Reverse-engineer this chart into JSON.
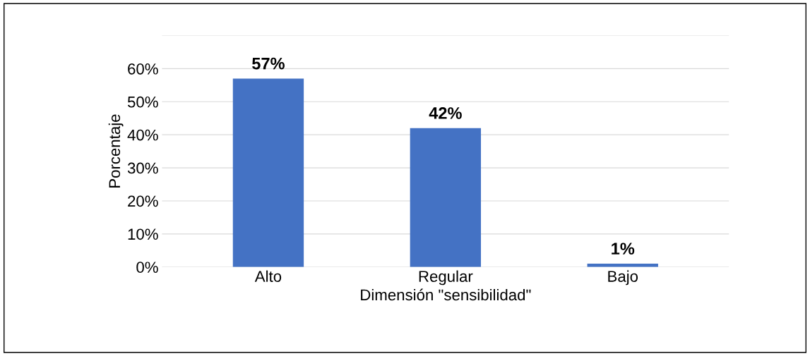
{
  "chart_data": {
    "type": "bar",
    "xlabel": "Dimensión \"sensibilidad\"",
    "ylabel": "Porcentaje",
    "categories": [
      "Alto",
      "Regular",
      "Bajo"
    ],
    "values": [
      57,
      42,
      1
    ],
    "value_labels": [
      "57%",
      "42%",
      "1%"
    ],
    "color": "#4472c4",
    "ylim": [
      0,
      70
    ],
    "yticks": [
      {
        "value": 0,
        "label": "0%"
      },
      {
        "value": 10,
        "label": "10%"
      },
      {
        "value": 20,
        "label": "20%"
      },
      {
        "value": 30,
        "label": "30%"
      },
      {
        "value": 40,
        "label": "40%"
      },
      {
        "value": 50,
        "label": "50%"
      },
      {
        "value": 60,
        "label": "60%"
      },
      {
        "value": 70,
        "label": null
      }
    ],
    "grid": "y",
    "legend": false
  }
}
